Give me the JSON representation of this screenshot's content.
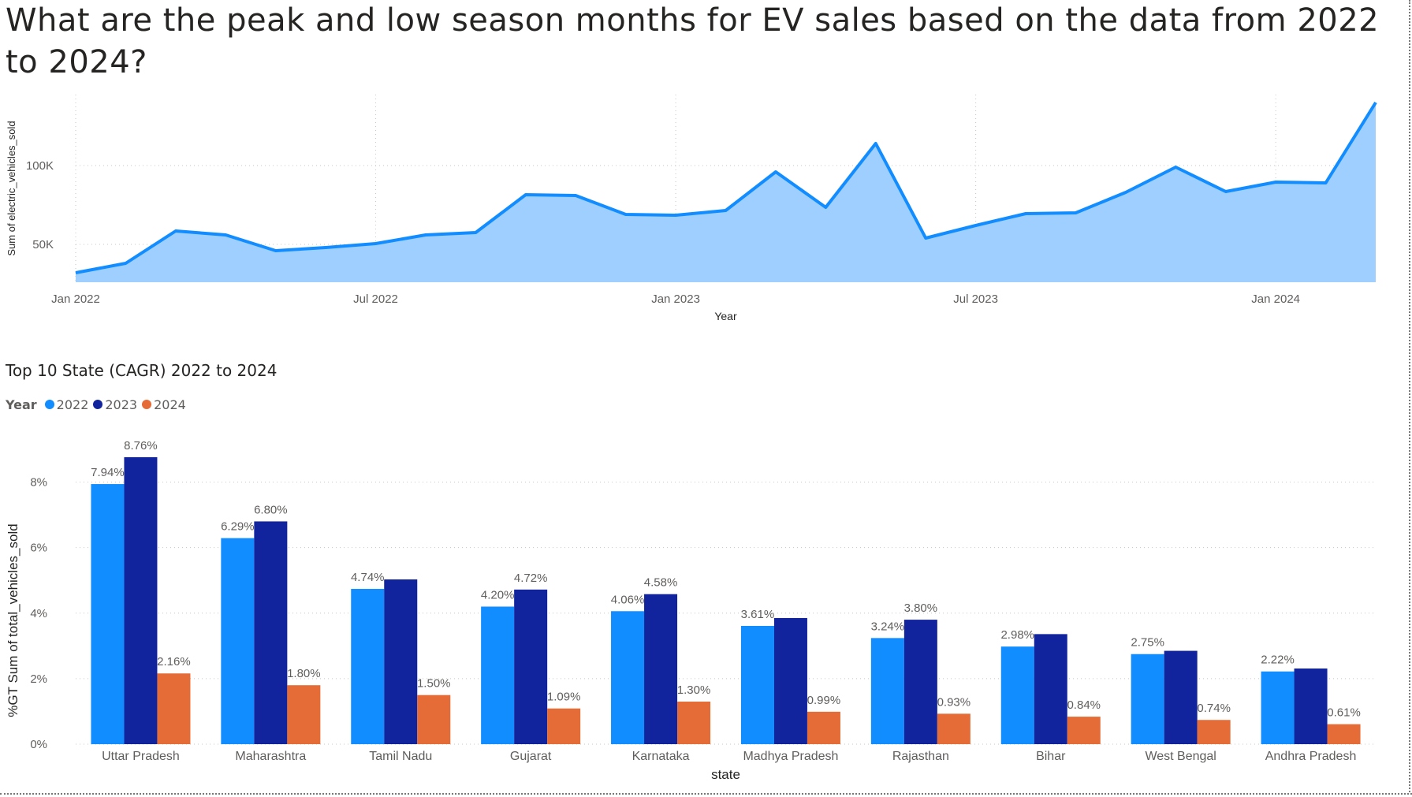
{
  "page": {
    "title": "What are the peak and low season months for EV sales based on the data from 2022 to 2024?"
  },
  "chart_data": [
    {
      "type": "area",
      "xlabel": "Year",
      "ylabel": "Sum of electric_vehicles_sold",
      "x_ticks": [
        "Jan 2022",
        "Jul 2022",
        "Jan 2023",
        "Jul 2023",
        "Jan 2024"
      ],
      "y_ticks": [
        "50K",
        "100K"
      ],
      "ylim": [
        26000,
        145000
      ],
      "grid": true,
      "color": "#118DFF",
      "fill_color": "#9FCFFF",
      "x": [
        "2022-01",
        "2022-02",
        "2022-03",
        "2022-04",
        "2022-05",
        "2022-06",
        "2022-07",
        "2022-08",
        "2022-09",
        "2022-10",
        "2022-11",
        "2022-12",
        "2023-01",
        "2023-02",
        "2023-03",
        "2023-04",
        "2023-05",
        "2023-06",
        "2023-07",
        "2023-08",
        "2023-09",
        "2023-10",
        "2023-11",
        "2023-12",
        "2024-01",
        "2024-02",
        "2024-03"
      ],
      "values": [
        32000,
        38000,
        58500,
        56000,
        46000,
        48000,
        50500,
        56000,
        57500,
        81500,
        81000,
        69000,
        68500,
        71500,
        96000,
        73500,
        114000,
        54000,
        62000,
        69500,
        70000,
        83000,
        99000,
        83500,
        89500,
        89000,
        140000
      ]
    },
    {
      "type": "bar",
      "title": "Top 10 State (CAGR) 2022 to 2024",
      "xlabel": "state",
      "ylabel": "%GT Sum of total_vehicles_sold",
      "y_ticks": [
        "0%",
        "2%",
        "4%",
        "6%",
        "8%"
      ],
      "ylim": [
        0,
        9
      ],
      "grid": true,
      "legend": {
        "title": "Year",
        "placement": "top-left"
      },
      "categories": [
        "Uttar Pradesh",
        "Maharashtra",
        "Tamil Nadu",
        "Gujarat",
        "Karnataka",
        "Madhya Pradesh",
        "Rajasthan",
        "Bihar",
        "West Bengal",
        "Andhra Pradesh"
      ],
      "series": [
        {
          "name": "2022",
          "color": "#118DFF",
          "values": [
            7.94,
            6.29,
            4.74,
            4.2,
            4.06,
            3.61,
            3.24,
            2.98,
            2.75,
            2.22
          ],
          "labels": [
            "7.94%",
            "6.29%",
            "4.74%",
            "4.20%",
            "4.06%",
            "3.61%",
            "3.24%",
            "2.98%",
            "2.75%",
            "2.22%"
          ]
        },
        {
          "name": "2023",
          "color": "#12239E",
          "values": [
            8.76,
            6.8,
            5.03,
            4.72,
            4.58,
            3.85,
            3.8,
            3.36,
            2.85,
            2.31
          ],
          "labels": [
            "8.76%",
            "6.80%",
            "",
            "4.72%",
            "4.58%",
            "",
            "3.80%",
            "",
            "",
            ""
          ]
        },
        {
          "name": "2024",
          "color": "#E66C37",
          "values": [
            2.16,
            1.8,
            1.5,
            1.09,
            1.3,
            0.99,
            0.93,
            0.84,
            0.74,
            0.61
          ],
          "labels": [
            "2.16%",
            "1.80%",
            "1.50%",
            "1.09%",
            "1.30%",
            "0.99%",
            "0.93%",
            "0.84%",
            "0.74%",
            "0.61%"
          ]
        }
      ]
    }
  ]
}
